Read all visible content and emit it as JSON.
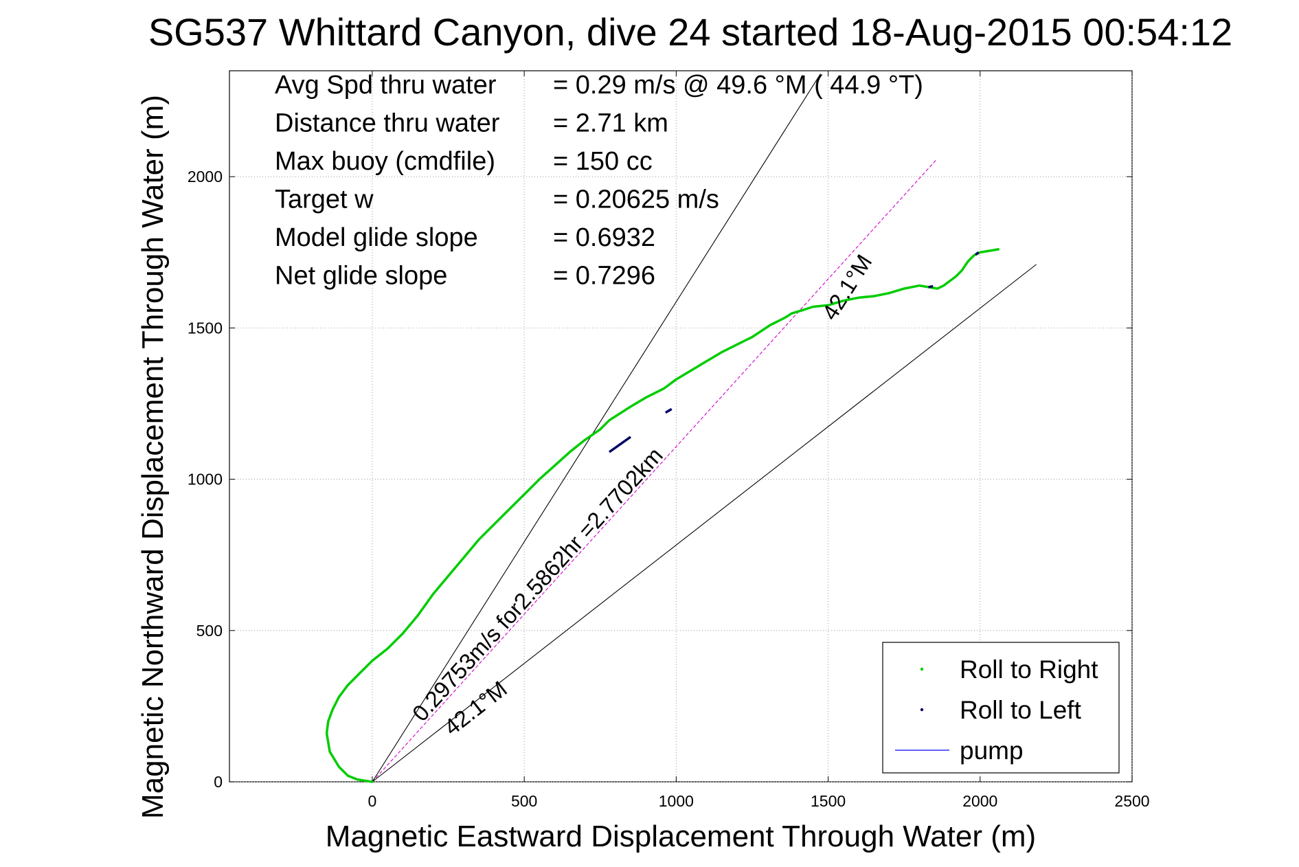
{
  "chart_data": {
    "type": "line",
    "title": "SG537 Whittard Canyon, dive 24 started 18-Aug-2015 00:54:12",
    "xlabel": "Magnetic Eastward Displacement Through Water (m)",
    "ylabel": "Magnetic Northward Displacement Through Water (m)",
    "xlim": [
      -470,
      2500
    ],
    "ylim": [
      0,
      2350
    ],
    "xticks": [
      0,
      500,
      1000,
      1500,
      2000,
      2500
    ],
    "yticks": [
      0,
      500,
      1000,
      1500,
      2000
    ],
    "grid": true,
    "stats": [
      {
        "label": "Avg Spd thru water",
        "value": "=  0.29 m/s @  49.6 °M ( 44.9 °T)"
      },
      {
        "label": "Distance thru water",
        "value": "=  2.71 km"
      },
      {
        "label": "Max buoy (cmdfile)",
        "value": "= 150 cc"
      },
      {
        "label": "Target w",
        "value": "= 0.20625 m/s"
      },
      {
        "label": "Model glide slope",
        "value": "= 0.6932"
      },
      {
        "label": "Net glide slope",
        "value": "= 0.7296"
      }
    ],
    "series": [
      {
        "name": "Roll to Right",
        "color": "#00cc00",
        "x": [
          0,
          -20,
          -50,
          -80,
          -110,
          -140,
          -150,
          -145,
          -130,
          -110,
          -80,
          -40,
          0,
          50,
          100,
          150,
          200,
          250,
          300,
          350,
          400,
          450,
          500,
          550,
          600,
          650,
          700,
          750,
          780,
          850,
          900,
          960,
          1000,
          1050,
          1100,
          1150,
          1200,
          1250,
          1280,
          1310,
          1340,
          1360,
          1380,
          1420,
          1450,
          1500,
          1550,
          1600,
          1650,
          1700,
          1750,
          1800,
          1830,
          1860,
          1880,
          1900,
          1920,
          1940,
          1960,
          1980,
          2000,
          2030,
          2060
        ],
        "y": [
          0,
          3,
          8,
          20,
          50,
          100,
          160,
          200,
          240,
          280,
          320,
          360,
          400,
          440,
          490,
          550,
          620,
          680,
          740,
          800,
          850,
          900,
          950,
          1000,
          1045,
          1090,
          1130,
          1165,
          1195,
          1240,
          1270,
          1300,
          1330,
          1360,
          1390,
          1420,
          1445,
          1470,
          1490,
          1510,
          1525,
          1535,
          1548,
          1560,
          1570,
          1575,
          1590,
          1600,
          1605,
          1615,
          1630,
          1640,
          1635,
          1630,
          1640,
          1655,
          1670,
          1690,
          1720,
          1740,
          1750,
          1755,
          1760
        ]
      },
      {
        "name": "Roll to Left",
        "color": "#000066",
        "segments": [
          [
            [
              780,
              1090
            ],
            [
              850,
              1140
            ]
          ],
          [
            [
              965,
              1220
            ],
            [
              985,
              1232
            ]
          ],
          [
            [
              1830,
              1635
            ],
            [
              1845,
              1638
            ]
          ],
          [
            [
              1985,
              1742
            ],
            [
              1995,
              1750
            ]
          ]
        ]
      },
      {
        "name": "pump",
        "color": "#0000ff"
      }
    ],
    "reference_lines": [
      {
        "from": [
          0,
          0
        ],
        "to": [
          1855,
          2055
        ],
        "color": "#cc00cc",
        "dash": true
      },
      {
        "from": [
          0,
          0
        ],
        "to": [
          1475,
          2340
        ],
        "color": "#000000"
      },
      {
        "from": [
          0,
          0
        ],
        "to": [
          2185,
          1710
        ],
        "color": "#000000"
      }
    ],
    "annotations": [
      {
        "text": "0.29753m/s for2.5862hr =2.7702km",
        "at": [
          165,
          195
        ],
        "angle": -47.8
      },
      {
        "text": "42.1°M",
        "at": [
          262,
          150
        ],
        "angle": -38.0
      },
      {
        "text": "42.1°M",
        "at": [
          1520,
          1520
        ],
        "angle": -57.6
      }
    ],
    "legend": {
      "position": "bottom-right",
      "entries": [
        {
          "label": "Roll to Right",
          "symbol": "dot",
          "color": "#00cc00"
        },
        {
          "label": "Roll to Left",
          "symbol": "dot",
          "color": "#000066"
        },
        {
          "label": "pump",
          "symbol": "line",
          "color": "#0000ff"
        }
      ]
    }
  }
}
